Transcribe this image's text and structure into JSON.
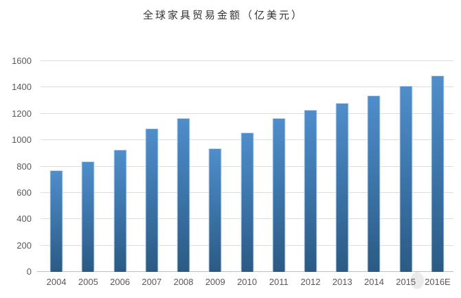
{
  "chart_data": {
    "type": "bar",
    "title": "全球家具贸易金额（亿美元）",
    "categories": [
      "2004",
      "2005",
      "2006",
      "2007",
      "2008",
      "2009",
      "2010",
      "2011",
      "2012",
      "2013",
      "2014",
      "2015",
      "2016E"
    ],
    "values": [
      770,
      840,
      930,
      1090,
      1170,
      940,
      1060,
      1170,
      1230,
      1280,
      1340,
      1410,
      1490
    ],
    "series_name": "全球家具贸易金额",
    "xlabel": "",
    "ylabel": "",
    "ylim": [
      0,
      1600
    ],
    "ytick_step": 200,
    "ytick_labels": [
      "0",
      "200",
      "400",
      "600",
      "800",
      "1000",
      "1200",
      "1400",
      "1600"
    ],
    "grid": "horizontal",
    "legend": "none",
    "colors": {
      "bar_gradient_top": "#4f8ecb",
      "bar_gradient_bottom": "#2b5a84",
      "bar_border": "#c9dcef",
      "gridline": "#dcdcdc",
      "axis_line": "#bdbdbd",
      "tick_label": "#595959",
      "title_text": "#333333",
      "background": "#ffffff",
      "artifact_ellipse": "#ebebeb"
    }
  }
}
